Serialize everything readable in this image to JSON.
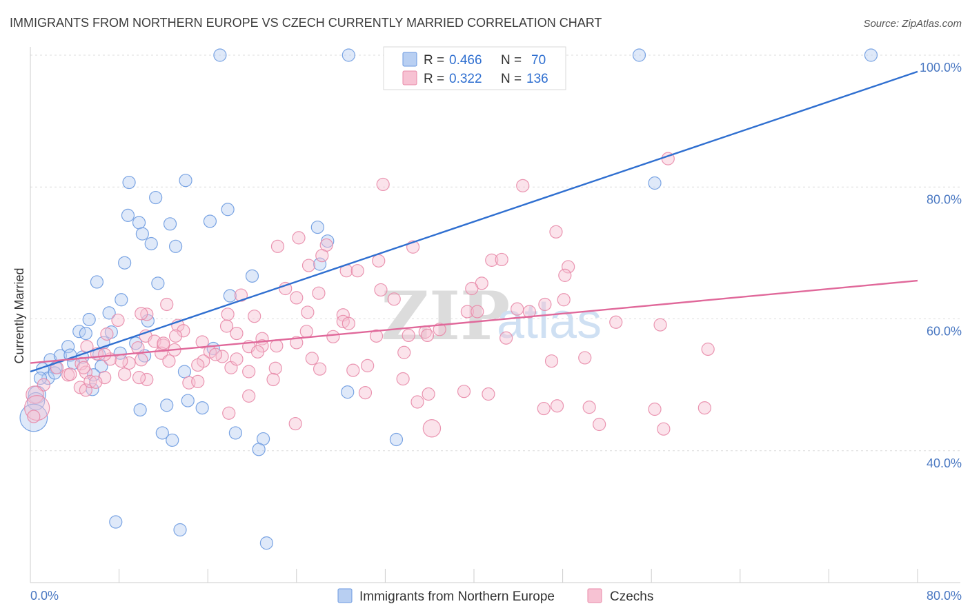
{
  "chart_data": {
    "type": "scatter",
    "title": "IMMIGRANTS FROM NORTHERN EUROPE VS CZECH CURRENTLY MARRIED CORRELATION CHART",
    "source": "Source: ZipAtlas.com",
    "xlabel": "",
    "ylabel": "Currently Married",
    "xlim": [
      0,
      80
    ],
    "ylim": [
      20,
      100
    ],
    "x_ticks_labeled": [
      "0.0%",
      "80.0%"
    ],
    "y_ticks": [
      {
        "value": 40,
        "label": "40.0%"
      },
      {
        "value": 60,
        "label": "60.0%"
      },
      {
        "value": 80,
        "label": "80.0%"
      },
      {
        "value": 100,
        "label": "100.0%"
      }
    ],
    "watermark": {
      "zip": "ZIP",
      "atlas": "atlas"
    },
    "legend": [
      {
        "r_label": "R =",
        "r_value": "0.466",
        "n_label": "N =",
        "n_value": "70",
        "color": "#6b9ae0",
        "fill": "#b8cff2"
      },
      {
        "r_label": "R =",
        "r_value": "0.322",
        "n_label": "N =",
        "n_value": "136",
        "color": "#e88aa8",
        "fill": "#f7c2d3"
      }
    ],
    "series": [
      {
        "name": "Immigrants from Northern Europe",
        "color": "#6b9ae0",
        "fill": "#b8cff2",
        "trend_color": "#2f6fd0",
        "trend": {
          "x0": 0,
          "y0": 52.0,
          "x1": 80,
          "y1": 97.5
        },
        "points": [
          [
            17.1,
            100
          ],
          [
            28.7,
            100
          ],
          [
            54.9,
            100
          ],
          [
            75.8,
            100
          ],
          [
            8.9,
            80.7
          ],
          [
            14.0,
            81.0
          ],
          [
            11.3,
            78.4
          ],
          [
            56.3,
            80.6
          ],
          [
            8.8,
            75.7
          ],
          [
            9.8,
            74.6
          ],
          [
            12.6,
            74.4
          ],
          [
            16.2,
            74.8
          ],
          [
            17.8,
            76.6
          ],
          [
            10.1,
            72.9
          ],
          [
            10.9,
            71.4
          ],
          [
            13.1,
            71.0
          ],
          [
            25.9,
            73.9
          ],
          [
            26.8,
            71.8
          ],
          [
            8.5,
            68.5
          ],
          [
            26.1,
            68.3
          ],
          [
            6.0,
            65.6
          ],
          [
            11.5,
            65.4
          ],
          [
            20.0,
            66.5
          ],
          [
            8.2,
            62.9
          ],
          [
            18.0,
            63.5
          ],
          [
            7.1,
            60.9
          ],
          [
            5.3,
            59.9
          ],
          [
            10.6,
            59.7
          ],
          [
            4.4,
            58.1
          ],
          [
            5.0,
            57.8
          ],
          [
            7.3,
            58.0
          ],
          [
            6.6,
            56.4
          ],
          [
            9.5,
            56.3
          ],
          [
            3.4,
            55.8
          ],
          [
            1.8,
            53.8
          ],
          [
            2.7,
            54.4
          ],
          [
            3.6,
            54.5
          ],
          [
            4.7,
            54.2
          ],
          [
            6.2,
            54.6
          ],
          [
            8.1,
            54.8
          ],
          [
            10.3,
            54.4
          ],
          [
            16.5,
            55.5
          ],
          [
            1.1,
            52.4
          ],
          [
            2.3,
            52.6
          ],
          [
            3.9,
            53.3
          ],
          [
            6.4,
            52.8
          ],
          [
            13.9,
            52.0
          ],
          [
            1.6,
            51.0
          ],
          [
            0.9,
            51.0
          ],
          [
            5.7,
            51.5
          ],
          [
            2.2,
            51.8
          ],
          [
            0.6,
            48.5
          ],
          [
            5.6,
            49.3
          ],
          [
            28.6,
            48.9
          ],
          [
            0.5,
            47.5
          ],
          [
            14.2,
            47.6
          ],
          [
            12.3,
            46.9
          ],
          [
            9.9,
            46.2
          ],
          [
            15.5,
            46.5
          ],
          [
            0.3,
            45.0
          ],
          [
            11.9,
            42.7
          ],
          [
            12.8,
            41.6
          ],
          [
            18.5,
            42.7
          ],
          [
            21.0,
            41.8
          ],
          [
            20.6,
            40.2
          ],
          [
            33.0,
            41.7
          ],
          [
            7.7,
            29.2
          ],
          [
            13.5,
            28.0
          ],
          [
            21.3,
            26.0
          ]
        ],
        "sizes": [
          1,
          1,
          1,
          1,
          1,
          1,
          1,
          1,
          1,
          1,
          1,
          1,
          1,
          1,
          1,
          1,
          1,
          1,
          1,
          1,
          1,
          1,
          1,
          1,
          1,
          1,
          1,
          1,
          1,
          1,
          1,
          1,
          1,
          1,
          1,
          1,
          1,
          1,
          1,
          1,
          1,
          1,
          1,
          1,
          1,
          1,
          1,
          1,
          1,
          1,
          1,
          1.4,
          1,
          1,
          1.4,
          1,
          1,
          1,
          1,
          2.2,
          1,
          1,
          1,
          1,
          1,
          1,
          1,
          1,
          1
        ]
      },
      {
        "name": "Czechs",
        "color": "#e88aa8",
        "fill": "#f7c2d3",
        "trend_color": "#e0689a",
        "trend": {
          "x0": 0,
          "y0": 53.3,
          "x1": 80,
          "y1": 65.8
        },
        "points": [
          [
            57.5,
            84.3
          ],
          [
            31.8,
            80.4
          ],
          [
            44.4,
            80.2
          ],
          [
            47.4,
            73.2
          ],
          [
            24.2,
            72.3
          ],
          [
            22.3,
            71.0
          ],
          [
            26.7,
            71.2
          ],
          [
            34.5,
            70.9
          ],
          [
            26.3,
            69.6
          ],
          [
            25.1,
            68.1
          ],
          [
            31.4,
            68.8
          ],
          [
            41.6,
            68.9
          ],
          [
            42.5,
            69.0
          ],
          [
            48.5,
            67.9
          ],
          [
            28.5,
            67.3
          ],
          [
            29.5,
            67.3
          ],
          [
            48.2,
            66.6
          ],
          [
            40.7,
            65.4
          ],
          [
            23.0,
            64.6
          ],
          [
            31.6,
            64.4
          ],
          [
            39.8,
            64.6
          ],
          [
            19.0,
            63.6
          ],
          [
            24.0,
            63.2
          ],
          [
            26.0,
            63.9
          ],
          [
            32.8,
            63.0
          ],
          [
            48.1,
            62.9
          ],
          [
            12.3,
            62.2
          ],
          [
            46.4,
            62.2
          ],
          [
            43.9,
            61.5
          ],
          [
            45.0,
            61.1
          ],
          [
            39.4,
            61.1
          ],
          [
            40.3,
            61.1
          ],
          [
            10.5,
            60.7
          ],
          [
            17.8,
            60.7
          ],
          [
            20.2,
            60.4
          ],
          [
            25.0,
            61.0
          ],
          [
            28.2,
            60.6
          ],
          [
            7.9,
            59.8
          ],
          [
            28.2,
            59.6
          ],
          [
            28.7,
            59.3
          ],
          [
            52.8,
            59.5
          ],
          [
            56.8,
            59.1
          ],
          [
            13.3,
            59.0
          ],
          [
            17.7,
            58.9
          ],
          [
            24.9,
            58.1
          ],
          [
            36.9,
            58.4
          ],
          [
            35.6,
            58.0
          ],
          [
            6.9,
            57.7
          ],
          [
            10.4,
            57.4
          ],
          [
            13.8,
            58.2
          ],
          [
            18.6,
            57.8
          ],
          [
            20.9,
            57.0
          ],
          [
            27.3,
            57.3
          ],
          [
            31.2,
            57.4
          ],
          [
            34.1,
            57.5
          ],
          [
            35.8,
            57.5
          ],
          [
            42.9,
            57.1
          ],
          [
            5.1,
            55.8
          ],
          [
            9.7,
            55.6
          ],
          [
            11.2,
            56.6
          ],
          [
            12.0,
            56.0
          ],
          [
            15.5,
            56.5
          ],
          [
            16.2,
            55.0
          ],
          [
            19.7,
            55.8
          ],
          [
            20.9,
            55.9
          ],
          [
            22.2,
            55.9
          ],
          [
            24.0,
            56.4
          ],
          [
            61.1,
            55.4
          ],
          [
            6.0,
            54.7
          ],
          [
            7.2,
            53.9
          ],
          [
            10.0,
            53.8
          ],
          [
            11.8,
            54.8
          ],
          [
            13.0,
            55.3
          ],
          [
            15.6,
            53.6
          ],
          [
            17.3,
            54.3
          ],
          [
            20.5,
            55.0
          ],
          [
            33.7,
            54.9
          ],
          [
            25.4,
            54.0
          ],
          [
            47.0,
            53.6
          ],
          [
            50.0,
            54.1
          ],
          [
            4.6,
            53.2
          ],
          [
            8.9,
            53.3
          ],
          [
            12.5,
            53.6
          ],
          [
            15.1,
            53.0
          ],
          [
            18.1,
            52.6
          ],
          [
            19.7,
            52.0
          ],
          [
            22.1,
            52.5
          ],
          [
            26.1,
            52.4
          ],
          [
            29.1,
            52.2
          ],
          [
            30.4,
            52.9
          ],
          [
            5.0,
            51.9
          ],
          [
            8.5,
            51.6
          ],
          [
            2.4,
            52.6
          ],
          [
            3.4,
            51.5
          ],
          [
            6.7,
            51.1
          ],
          [
            10.5,
            50.8
          ],
          [
            14.3,
            50.3
          ],
          [
            15.1,
            50.5
          ],
          [
            21.9,
            50.8
          ],
          [
            33.6,
            50.9
          ],
          [
            1.2,
            50.0
          ],
          [
            4.5,
            49.6
          ],
          [
            5.0,
            49.2
          ],
          [
            5.4,
            50.5
          ],
          [
            30.2,
            48.8
          ],
          [
            35.9,
            48.6
          ],
          [
            39.1,
            49.0
          ],
          [
            41.3,
            48.6
          ],
          [
            19.7,
            48.3
          ],
          [
            34.9,
            47.4
          ],
          [
            47.5,
            46.8
          ],
          [
            46.3,
            46.4
          ],
          [
            50.4,
            46.6
          ],
          [
            56.3,
            46.3
          ],
          [
            60.8,
            46.5
          ],
          [
            17.9,
            45.7
          ],
          [
            23.9,
            44.1
          ],
          [
            36.2,
            43.4
          ],
          [
            0.4,
            48.5
          ],
          [
            0.6,
            46.5
          ],
          [
            0.3,
            45.2
          ],
          [
            51.3,
            44.0
          ],
          [
            57.1,
            43.3
          ],
          [
            5.9,
            50.4
          ],
          [
            10.0,
            60.8
          ],
          [
            9.8,
            51.1
          ],
          [
            4.8,
            52.6
          ],
          [
            3.6,
            51.6
          ],
          [
            6.7,
            54.6
          ],
          [
            8.2,
            53.6
          ],
          [
            12.0,
            56.3
          ],
          [
            16.7,
            54.6
          ],
          [
            13.1,
            57.4
          ],
          [
            18.6,
            53.9
          ]
        ],
        "sizes": [
          1,
          1,
          1,
          1,
          1,
          1,
          1,
          1,
          1,
          1,
          1,
          1,
          1,
          1,
          1,
          1,
          1,
          1,
          1,
          1,
          1,
          1,
          1,
          1,
          1,
          1,
          1,
          1,
          1,
          1,
          1,
          1,
          1,
          1,
          1,
          1,
          1,
          1,
          1,
          1,
          1,
          1,
          1,
          1,
          1,
          1,
          1,
          1,
          1,
          1,
          1,
          1,
          1,
          1,
          1,
          1,
          1,
          1,
          1,
          1,
          1,
          1,
          1,
          1,
          1,
          1,
          1,
          1,
          1,
          1,
          1,
          1,
          1,
          1,
          1,
          1,
          1,
          1,
          1,
          1,
          1,
          1,
          1,
          1,
          1,
          1,
          1,
          1,
          1,
          1,
          1,
          1,
          1,
          1,
          1,
          1,
          1,
          1,
          1,
          1,
          1,
          1,
          1,
          1,
          1,
          1,
          1,
          1,
          1,
          1,
          1,
          1,
          1,
          1,
          1,
          1,
          1,
          1.4,
          1.4,
          2.0,
          1,
          1,
          1,
          1,
          1,
          1,
          1,
          1,
          1,
          1,
          1,
          1,
          1
        ]
      }
    ]
  }
}
